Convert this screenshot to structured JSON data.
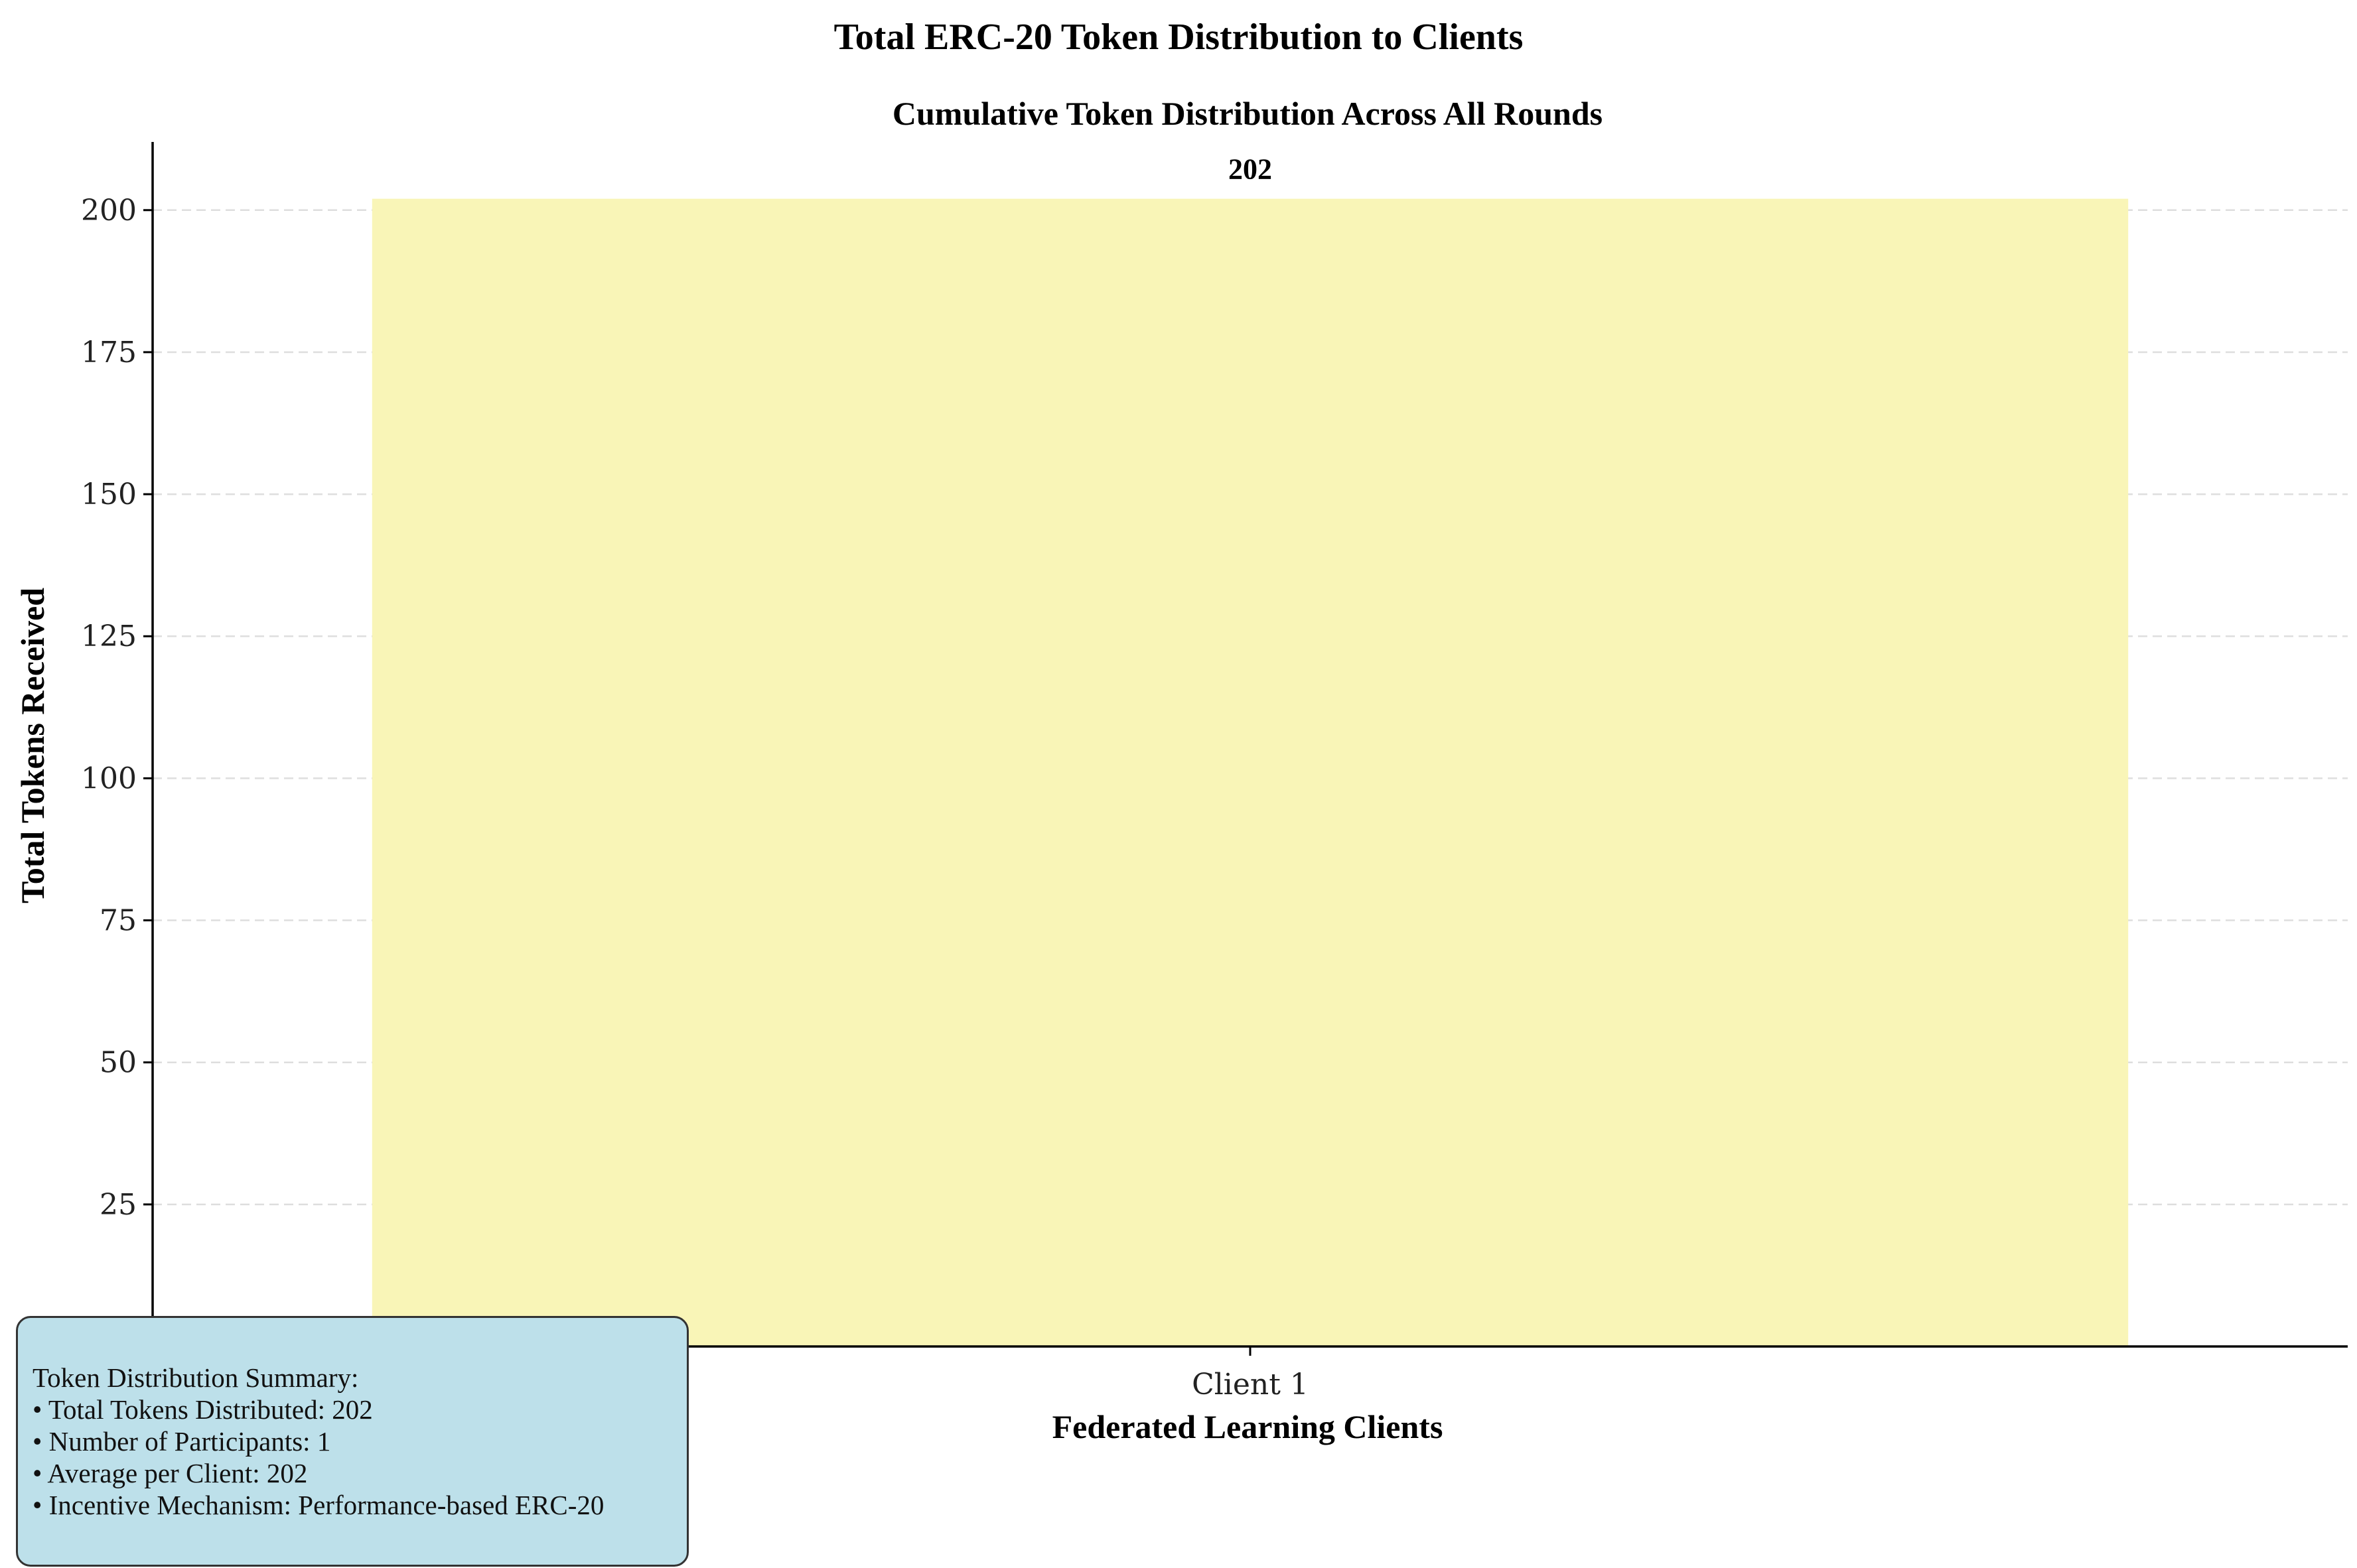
{
  "figure": {
    "suptitle": "Total ERC-20 Token Distribution to Clients"
  },
  "chart_data": {
    "type": "bar",
    "title": "Cumulative Token Distribution Across All Rounds",
    "xlabel": "Federated Learning Clients",
    "ylabel": "Total Tokens Received",
    "categories": [
      "Client 1"
    ],
    "values": [
      202
    ],
    "data_labels": [
      "202"
    ],
    "ylim": [
      0,
      212
    ],
    "yticks": [
      0,
      25,
      50,
      75,
      100,
      125,
      150,
      175,
      200
    ],
    "grid": "y-dashed",
    "bar_color": "#f9f5b7",
    "box_color": "#bde0ea"
  },
  "summary": {
    "heading": "Token Distribution Summary:",
    "lines": [
      "• Total Tokens Distributed: 202",
      "• Number of Participants: 1",
      "• Average per Client: 202",
      "• Incentive Mechanism: Performance-based ERC-20"
    ]
  }
}
